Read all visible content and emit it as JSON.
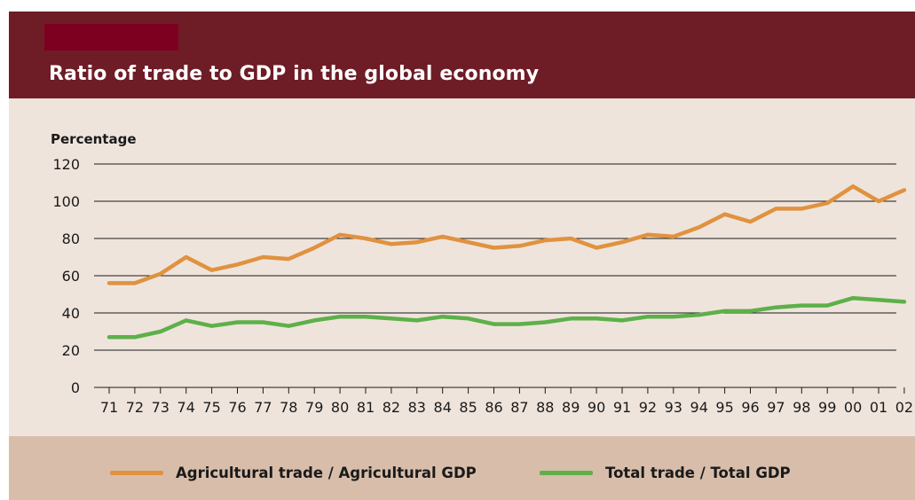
{
  "header": {
    "title": "Ratio of trade to GDP in the global economy",
    "band_color": "#6e1c26",
    "accent_block_color": "#7d0020"
  },
  "chart_data": {
    "type": "line",
    "title": "Ratio of trade to GDP in the global economy",
    "ylabel": "Percentage",
    "xlabel": "",
    "ylim": [
      0,
      120
    ],
    "yticks": [
      0,
      20,
      40,
      60,
      80,
      100,
      120
    ],
    "grid": "horizontal",
    "legend_position": "bottom",
    "categories": [
      "71",
      "72",
      "73",
      "74",
      "75",
      "76",
      "77",
      "78",
      "79",
      "80",
      "81",
      "82",
      "83",
      "84",
      "85",
      "86",
      "87",
      "88",
      "89",
      "90",
      "91",
      "92",
      "93",
      "94",
      "95",
      "96",
      "97",
      "98",
      "99",
      "00",
      "01",
      "02"
    ],
    "series": [
      {
        "name": "Agricultural trade / Agricultural GDP",
        "color": "#e0923f",
        "values": [
          56,
          56,
          61,
          70,
          63,
          66,
          70,
          69,
          75,
          82,
          80,
          77,
          78,
          81,
          78,
          75,
          76,
          79,
          80,
          75,
          78,
          82,
          81,
          86,
          93,
          89,
          96,
          96,
          99,
          108,
          100,
          106
        ]
      },
      {
        "name": "Total trade / Total GDP",
        "color": "#5db04a",
        "values": [
          27,
          27,
          30,
          36,
          33,
          35,
          35,
          33,
          36,
          38,
          38,
          37,
          36,
          38,
          37,
          34,
          34,
          35,
          37,
          37,
          36,
          38,
          38,
          39,
          41,
          41,
          43,
          44,
          44,
          48,
          47,
          46
        ]
      }
    ]
  }
}
